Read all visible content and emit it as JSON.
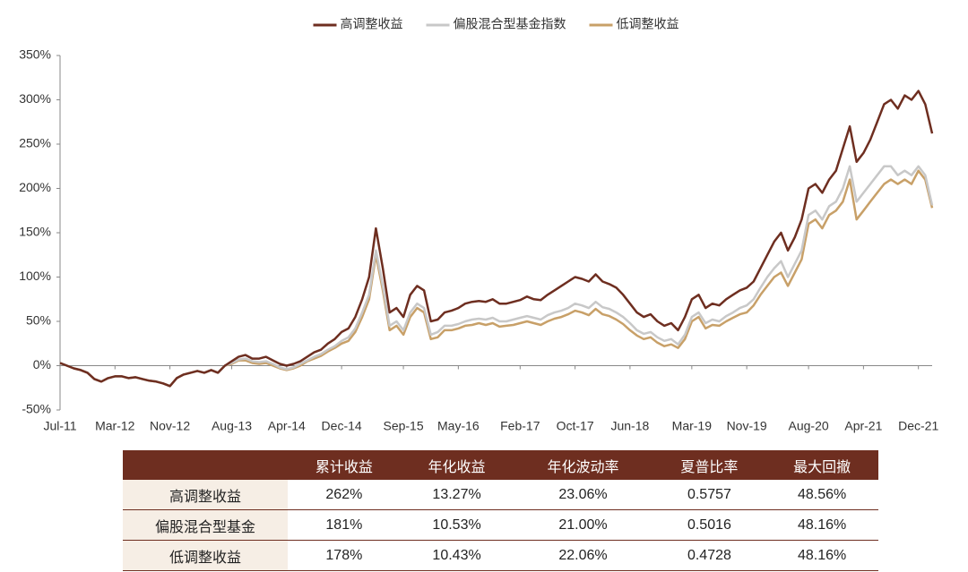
{
  "chart_data": {
    "type": "line",
    "categories": [
      "Jul-11",
      null,
      null,
      null,
      null,
      null,
      null,
      null,
      "Mar-12",
      null,
      null,
      null,
      null,
      null,
      null,
      null,
      "Nov-12",
      null,
      null,
      null,
      null,
      null,
      null,
      null,
      null,
      "Aug-13",
      null,
      null,
      null,
      null,
      null,
      null,
      null,
      "Apr-14",
      null,
      null,
      null,
      null,
      null,
      null,
      null,
      "Dec-14",
      null,
      null,
      null,
      null,
      null,
      null,
      null,
      null,
      "Sep-15",
      null,
      null,
      null,
      null,
      null,
      null,
      null,
      "May-16",
      null,
      null,
      null,
      null,
      null,
      null,
      null,
      null,
      "Feb-17",
      null,
      null,
      null,
      null,
      null,
      null,
      null,
      "Oct-17",
      null,
      null,
      null,
      null,
      null,
      null,
      null,
      "Jun-18",
      null,
      null,
      null,
      null,
      null,
      null,
      null,
      null,
      "Mar-19",
      null,
      null,
      null,
      null,
      null,
      null,
      null,
      "Nov-19",
      null,
      null,
      null,
      null,
      null,
      null,
      null,
      null,
      "Aug-20",
      null,
      null,
      null,
      null,
      null,
      null,
      null,
      "Apr-21",
      null,
      null,
      null,
      null,
      null,
      null,
      null,
      "Dec-21",
      null,
      null
    ],
    "series": [
      {
        "name": "高调整收益",
        "color": "#6e2e20",
        "values": [
          3,
          0,
          -3,
          -5,
          -8,
          -15,
          -18,
          -14,
          -12,
          -12,
          -14,
          -13,
          -15,
          -17,
          -18,
          -20,
          -23,
          -14,
          -10,
          -8,
          -6,
          -8,
          -5,
          -8,
          0,
          5,
          10,
          12,
          8,
          8,
          10,
          6,
          2,
          0,
          2,
          5,
          10,
          15,
          18,
          25,
          30,
          38,
          42,
          55,
          75,
          100,
          155,
          110,
          60,
          65,
          55,
          80,
          90,
          85,
          50,
          52,
          60,
          62,
          65,
          70,
          72,
          73,
          72,
          75,
          70,
          70,
          72,
          74,
          78,
          75,
          74,
          80,
          85,
          90,
          95,
          100,
          98,
          95,
          103,
          95,
          92,
          88,
          80,
          70,
          60,
          55,
          58,
          50,
          45,
          48,
          40,
          55,
          75,
          80,
          65,
          70,
          68,
          75,
          80,
          85,
          88,
          95,
          110,
          125,
          140,
          150,
          130,
          145,
          165,
          200,
          205,
          195,
          210,
          220,
          245,
          270,
          230,
          240,
          255,
          275,
          295,
          300,
          290,
          305,
          300,
          310,
          295,
          262
        ]
      },
      {
        "name": "偏股混合型基金指数",
        "color": "#c8c8c8",
        "values": [
          3,
          0,
          -3,
          -5,
          -8,
          -15,
          -18,
          -14,
          -12,
          -12,
          -14,
          -13,
          -15,
          -17,
          -18,
          -20,
          -23,
          -14,
          -10,
          -8,
          -6,
          -8,
          -5,
          -8,
          0,
          3,
          7,
          8,
          5,
          4,
          5,
          2,
          -2,
          -4,
          -2,
          2,
          6,
          10,
          13,
          18,
          22,
          28,
          32,
          42,
          60,
          80,
          130,
          90,
          45,
          50,
          40,
          60,
          70,
          65,
          35,
          38,
          45,
          45,
          47,
          50,
          52,
          53,
          52,
          54,
          50,
          50,
          52,
          54,
          56,
          54,
          52,
          57,
          60,
          62,
          65,
          70,
          68,
          65,
          72,
          66,
          64,
          60,
          55,
          48,
          40,
          36,
          38,
          32,
          28,
          30,
          24,
          35,
          55,
          60,
          48,
          52,
          50,
          56,
          60,
          65,
          68,
          75,
          88,
          100,
          110,
          118,
          100,
          115,
          130,
          170,
          175,
          165,
          180,
          185,
          200,
          225,
          185,
          195,
          205,
          215,
          225,
          225,
          215,
          220,
          215,
          225,
          215,
          181
        ]
      },
      {
        "name": "低调整收益",
        "color": "#c8a068",
        "values": [
          3,
          0,
          -3,
          -5,
          -8,
          -15,
          -18,
          -14,
          -12,
          -12,
          -14,
          -13,
          -15,
          -17,
          -18,
          -20,
          -23,
          -14,
          -10,
          -8,
          -6,
          -8,
          -5,
          -8,
          0,
          2,
          6,
          6,
          3,
          2,
          3,
          0,
          -3,
          -5,
          -3,
          0,
          5,
          8,
          11,
          16,
          20,
          25,
          28,
          38,
          55,
          75,
          125,
          85,
          40,
          45,
          35,
          55,
          65,
          60,
          30,
          32,
          40,
          40,
          42,
          45,
          46,
          48,
          46,
          48,
          44,
          45,
          46,
          48,
          50,
          48,
          46,
          50,
          53,
          55,
          58,
          62,
          60,
          57,
          64,
          58,
          56,
          52,
          47,
          40,
          34,
          30,
          32,
          26,
          22,
          24,
          20,
          30,
          50,
          55,
          42,
          46,
          45,
          50,
          54,
          58,
          60,
          68,
          80,
          90,
          100,
          105,
          90,
          105,
          120,
          160,
          165,
          155,
          170,
          175,
          185,
          210,
          165,
          175,
          185,
          195,
          205,
          210,
          205,
          210,
          205,
          220,
          210,
          178
        ]
      }
    ],
    "ylim": [
      -50,
      350
    ],
    "yticks": [
      {
        "value": -50,
        "label": "-50%"
      },
      {
        "value": 0,
        "label": "0%"
      },
      {
        "value": 50,
        "label": "50%"
      },
      {
        "value": 100,
        "label": "100%"
      },
      {
        "value": 150,
        "label": "150%"
      },
      {
        "value": 200,
        "label": "200%"
      },
      {
        "value": 250,
        "label": "250%"
      },
      {
        "value": 300,
        "label": "300%"
      },
      {
        "value": 350,
        "label": "350%"
      }
    ],
    "grid": false,
    "legend": "top"
  },
  "table": {
    "headers": [
      "累计收益",
      "年化收益",
      "年化波动率",
      "夏普比率",
      "最大回撤"
    ],
    "rows": [
      [
        "高调整收益",
        "262%",
        "13.27%",
        "23.06%",
        "0.5757",
        "48.56%"
      ],
      [
        "偏股混合型基金",
        "181%",
        "10.53%",
        "21.00%",
        "0.5016",
        "48.16%"
      ],
      [
        "低调整收益",
        "178%",
        "10.43%",
        "22.06%",
        "0.4728",
        "48.16%"
      ]
    ]
  }
}
